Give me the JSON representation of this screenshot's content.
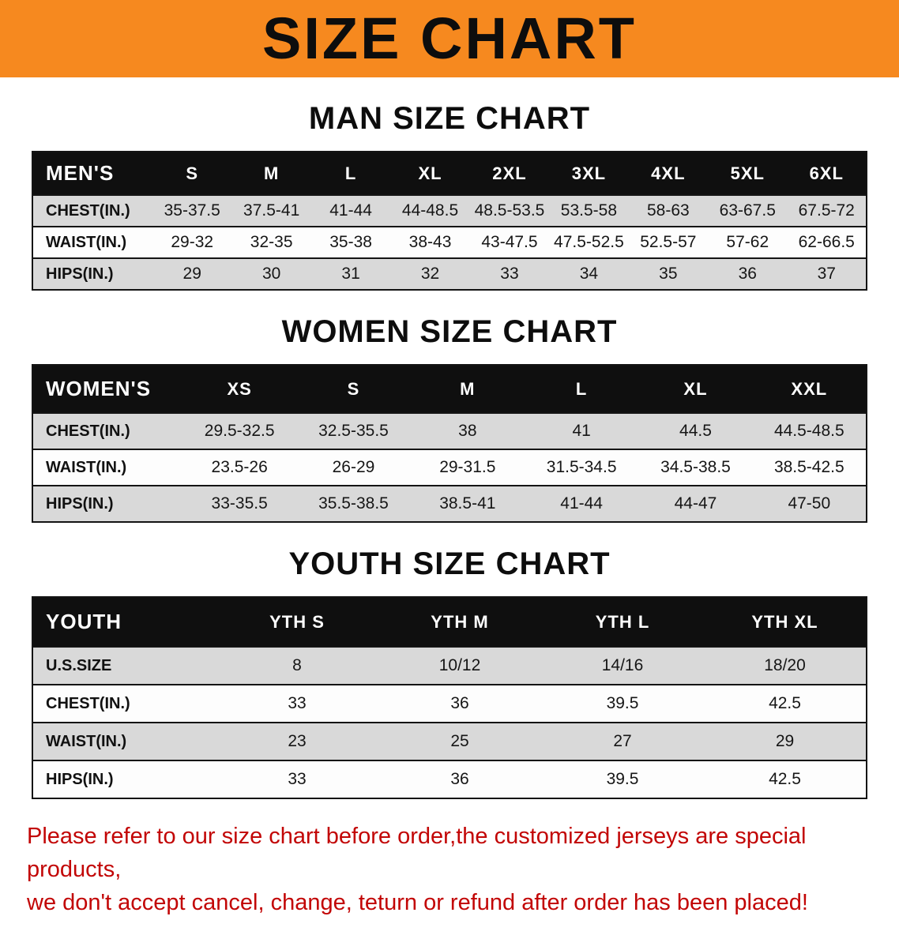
{
  "banner": {
    "title": "SIZE CHART",
    "background_color": "#F6891F",
    "text_color": "#0d0d0d"
  },
  "chart_data": [
    {
      "type": "table",
      "heading": "MAN SIZE CHART",
      "columns": [
        "MEN'S",
        "S",
        "M",
        "L",
        "XL",
        "2XL",
        "3XL",
        "4XL",
        "5XL",
        "6XL"
      ],
      "rows": [
        [
          "CHEST(IN.)",
          "35-37.5",
          "37.5-41",
          "41-44",
          "44-48.5",
          "48.5-53.5",
          "53.5-58",
          "58-63",
          "63-67.5",
          "67.5-72"
        ],
        [
          "WAIST(IN.)",
          "29-32",
          "32-35",
          "35-38",
          "38-43",
          "43-47.5",
          "47.5-52.5",
          "52.5-57",
          "57-62",
          "62-66.5"
        ],
        [
          "HIPS(IN.)",
          "29",
          "30",
          "31",
          "32",
          "33",
          "34",
          "35",
          "36",
          "37"
        ]
      ]
    },
    {
      "type": "table",
      "heading": "WOMEN SIZE CHART",
      "columns": [
        "WOMEN'S",
        "XS",
        "S",
        "M",
        "L",
        "XL",
        "XXL"
      ],
      "rows": [
        [
          "CHEST(IN.)",
          "29.5-32.5",
          "32.5-35.5",
          "38",
          "41",
          "44.5",
          "44.5-48.5"
        ],
        [
          "WAIST(IN.)",
          "23.5-26",
          "26-29",
          "29-31.5",
          "31.5-34.5",
          "34.5-38.5",
          "38.5-42.5"
        ],
        [
          "HIPS(IN.)",
          "33-35.5",
          "35.5-38.5",
          "38.5-41",
          "41-44",
          "44-47",
          "47-50"
        ]
      ]
    },
    {
      "type": "table",
      "heading": "YOUTH SIZE CHART",
      "columns": [
        "YOUTH",
        "YTH S",
        "YTH M",
        "YTH L",
        "YTH XL"
      ],
      "rows": [
        [
          "U.S.SIZE",
          "8",
          "10/12",
          "14/16",
          "18/20"
        ],
        [
          "CHEST(IN.)",
          "33",
          "36",
          "39.5",
          "42.5"
        ],
        [
          "WAIST(IN.)",
          "23",
          "25",
          "27",
          "29"
        ],
        [
          "HIPS(IN.)",
          "33",
          "36",
          "39.5",
          "42.5"
        ]
      ]
    }
  ],
  "disclaimer": {
    "color": "#C20505",
    "lines": [
      "Please refer to our size chart before order,the customized jerseys are special products,",
      "we don't accept cancel, change, teturn or refund after order has been placed!"
    ]
  }
}
